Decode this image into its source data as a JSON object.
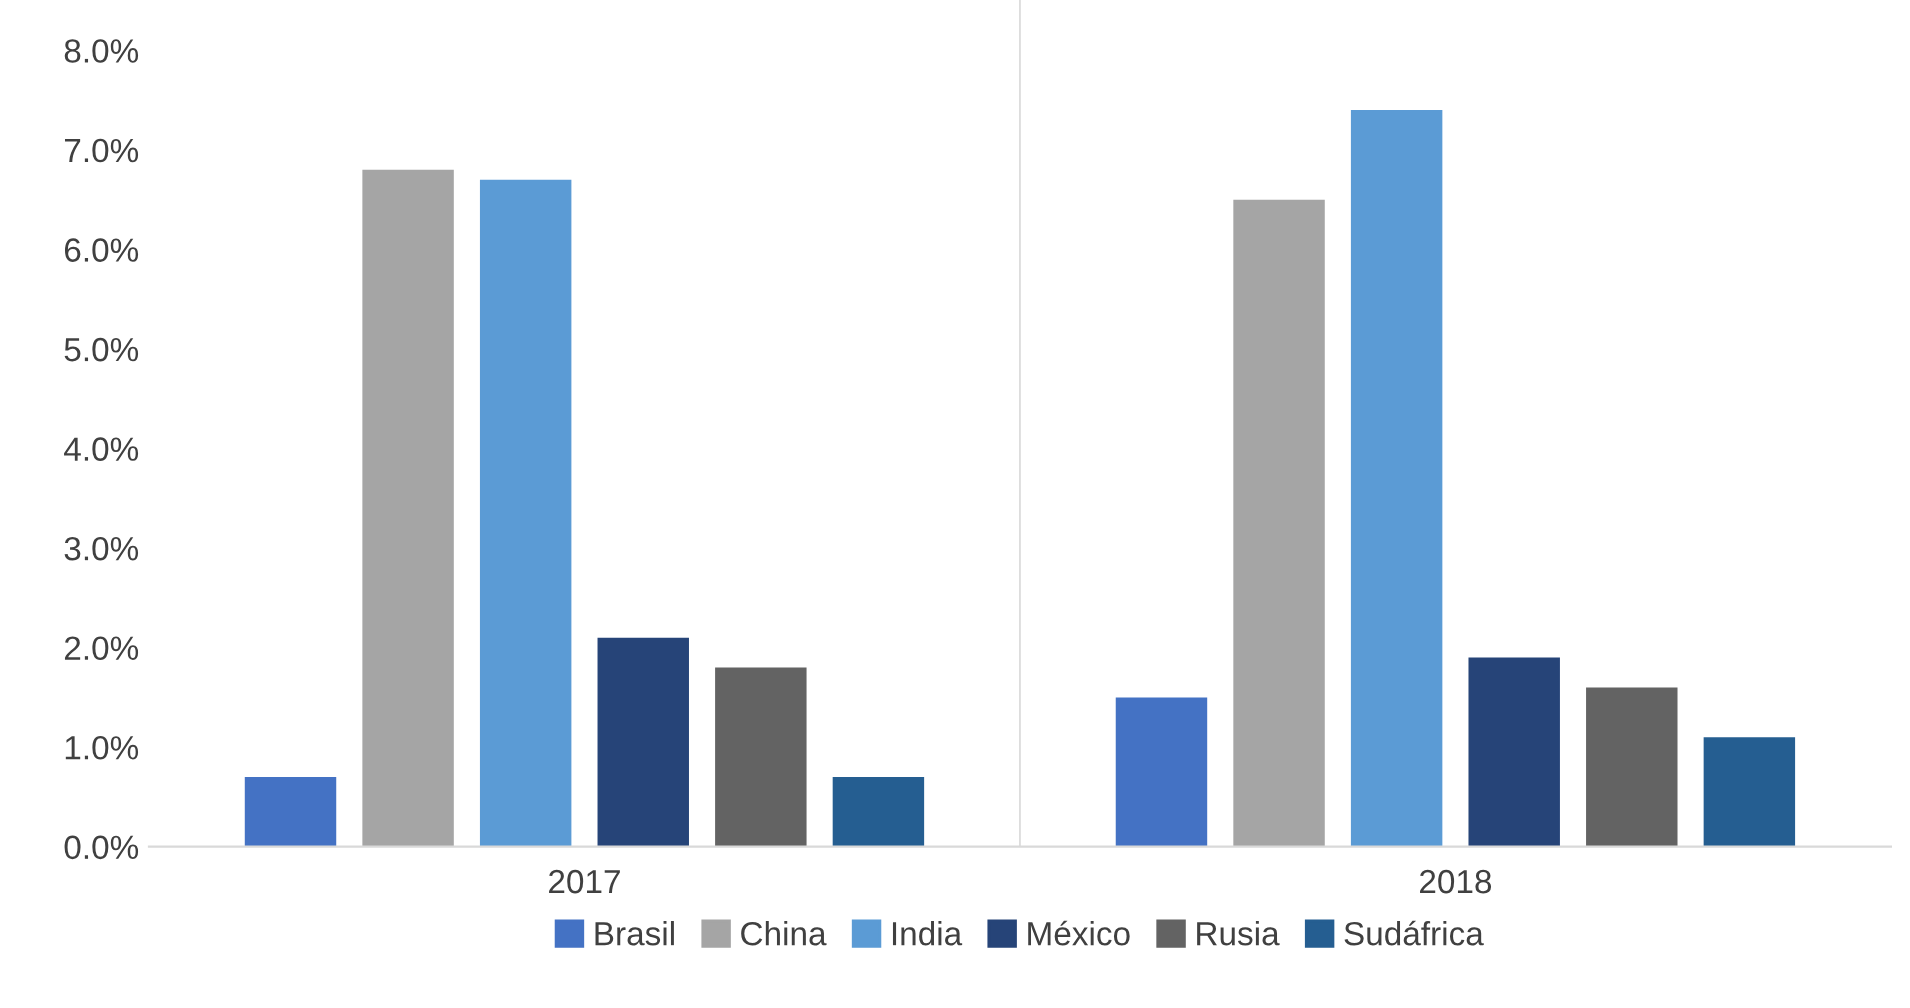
{
  "chart_data": {
    "type": "bar",
    "categories": [
      "2017",
      "2018"
    ],
    "series": [
      {
        "name": "Brasil",
        "color": "#4472c4",
        "values": [
          0.7,
          1.5
        ]
      },
      {
        "name": "China",
        "color": "#a5a5a5",
        "values": [
          6.8,
          6.5
        ]
      },
      {
        "name": "India",
        "color": "#5b9bd5",
        "values": [
          6.7,
          7.4
        ]
      },
      {
        "name": "México",
        "color": "#264478",
        "values": [
          2.1,
          1.9
        ]
      },
      {
        "name": "Rusia",
        "color": "#636363",
        "values": [
          1.8,
          1.6
        ]
      },
      {
        "name": "Sudáfrica",
        "color": "#255e91",
        "values": [
          0.7,
          1.1
        ]
      }
    ],
    "ylim": [
      0,
      8
    ],
    "yticks": [
      {
        "value": 0,
        "label": "0.0%"
      },
      {
        "value": 1,
        "label": "1.0%"
      },
      {
        "value": 2,
        "label": "2.0%"
      },
      {
        "value": 3,
        "label": "3.0%"
      },
      {
        "value": 4,
        "label": "4.0%"
      },
      {
        "value": 5,
        "label": "5.0%"
      },
      {
        "value": 6,
        "label": "6.0%"
      },
      {
        "value": 7,
        "label": "7.0%"
      },
      {
        "value": 8,
        "label": "8.0%"
      }
    ],
    "grid": false,
    "legend": "bottom"
  }
}
